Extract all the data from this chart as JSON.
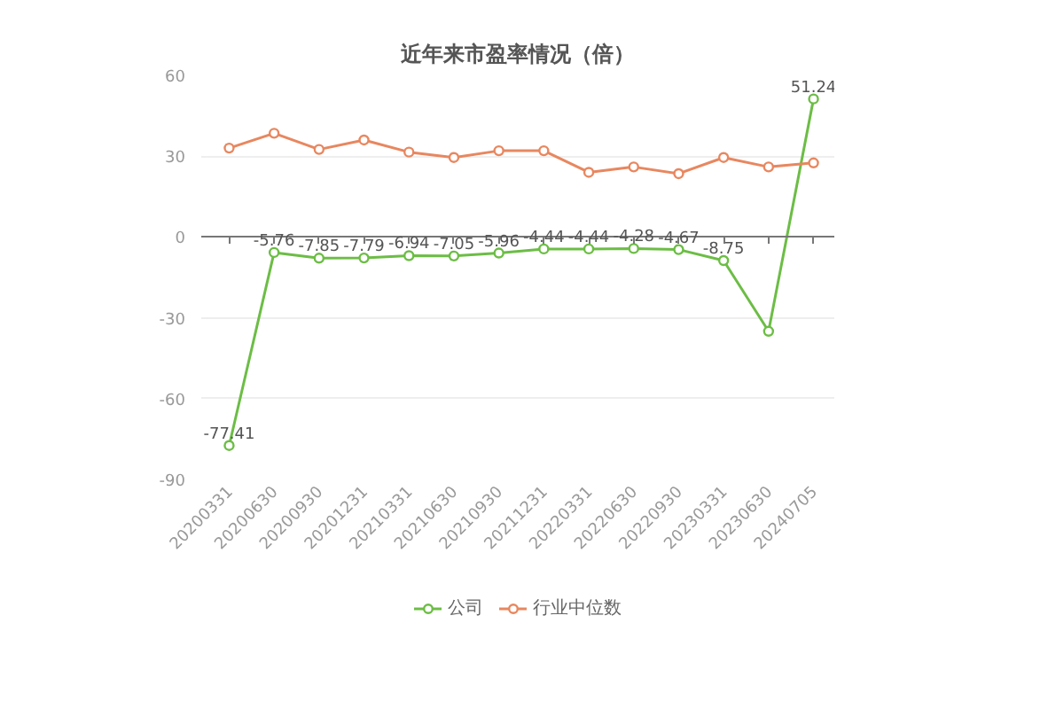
{
  "chart_data": {
    "type": "line",
    "title": "近年来市盈率情况（倍）",
    "categories": [
      "20200331",
      "20200630",
      "20200930",
      "20201231",
      "20210331",
      "20210630",
      "20210930",
      "20211231",
      "20220331",
      "20220630",
      "20220930",
      "20230331",
      "20230630",
      "20240705"
    ],
    "series": [
      {
        "name": "公司",
        "color": "#6cbd45",
        "values": [
          -77.41,
          -5.76,
          -7.85,
          -7.79,
          -6.94,
          -7.05,
          -5.96,
          -4.44,
          -4.44,
          -4.28,
          -4.67,
          -8.75,
          -35,
          51.24
        ],
        "value_labels": [
          "-77.41",
          "-5.76",
          "-7.85",
          "-7.79",
          "-6.94",
          "-7.05",
          "-5.96",
          "-4.44",
          "-4.44",
          "-4.28",
          "-4.67",
          "-8.75",
          null,
          "51.24"
        ]
      },
      {
        "name": "行业中位数",
        "color": "#e8875f",
        "values": [
          33,
          38.5,
          32.5,
          36,
          31.5,
          29.5,
          32,
          32,
          24,
          26,
          23.5,
          29.5,
          26,
          27.5
        ]
      }
    ],
    "ylim": [
      -90,
      60
    ],
    "yticks": [
      -90,
      -60,
      -30,
      0,
      30,
      60
    ],
    "grid": "y",
    "legend": "bottom",
    "marker": "circle",
    "line_style": "solid"
  }
}
